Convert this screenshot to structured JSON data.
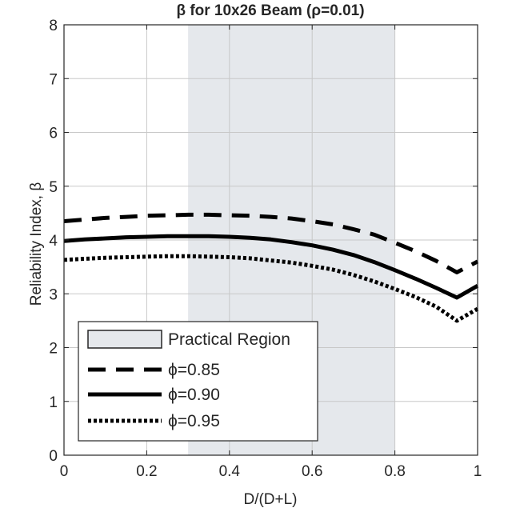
{
  "chart_data": {
    "type": "line",
    "title": "β for 10x26 Beam (ρ=0.01)",
    "xlabel": "D/(D+L)",
    "ylabel": "Reliability Index, β",
    "xlim": [
      0,
      1
    ],
    "ylim": [
      0,
      8
    ],
    "xticks": [
      0,
      0.2,
      0.4,
      0.6,
      0.8,
      1
    ],
    "xtick_labels": [
      "0",
      "0.2",
      "0.4",
      "0.6",
      "0.8",
      "1"
    ],
    "yticks": [
      0,
      1,
      2,
      3,
      4,
      5,
      6,
      7,
      8
    ],
    "ytick_labels": [
      "0",
      "1",
      "2",
      "3",
      "4",
      "5",
      "6",
      "7",
      "8"
    ],
    "grid": true,
    "legend_position": "bottom-left",
    "region": {
      "name": "Practical Region",
      "x": [
        0.3,
        0.8
      ],
      "color": "#e5e8ec"
    },
    "x": [
      0,
      0.05,
      0.1,
      0.15,
      0.2,
      0.25,
      0.3,
      0.35,
      0.4,
      0.45,
      0.5,
      0.55,
      0.6,
      0.65,
      0.7,
      0.75,
      0.8,
      0.85,
      0.9,
      0.95,
      1.0
    ],
    "series": [
      {
        "name": "ϕ=0.85",
        "style": "dashed",
        "color": "#000000",
        "values": [
          4.35,
          4.38,
          4.41,
          4.43,
          4.45,
          4.46,
          4.47,
          4.47,
          4.46,
          4.45,
          4.43,
          4.4,
          4.35,
          4.29,
          4.2,
          4.1,
          3.95,
          3.79,
          3.61,
          3.4,
          3.6
        ]
      },
      {
        "name": "ϕ=0.90",
        "style": "solid",
        "color": "#000000",
        "values": [
          3.98,
          4.01,
          4.03,
          4.05,
          4.06,
          4.07,
          4.07,
          4.07,
          4.06,
          4.04,
          4.01,
          3.96,
          3.9,
          3.82,
          3.72,
          3.59,
          3.44,
          3.28,
          3.11,
          2.93,
          3.15
        ]
      },
      {
        "name": "ϕ=0.95",
        "style": "dotted",
        "color": "#000000",
        "values": [
          3.63,
          3.65,
          3.67,
          3.68,
          3.69,
          3.7,
          3.7,
          3.69,
          3.68,
          3.66,
          3.62,
          3.58,
          3.52,
          3.45,
          3.35,
          3.23,
          3.09,
          2.94,
          2.76,
          2.5,
          2.72
        ]
      }
    ]
  }
}
